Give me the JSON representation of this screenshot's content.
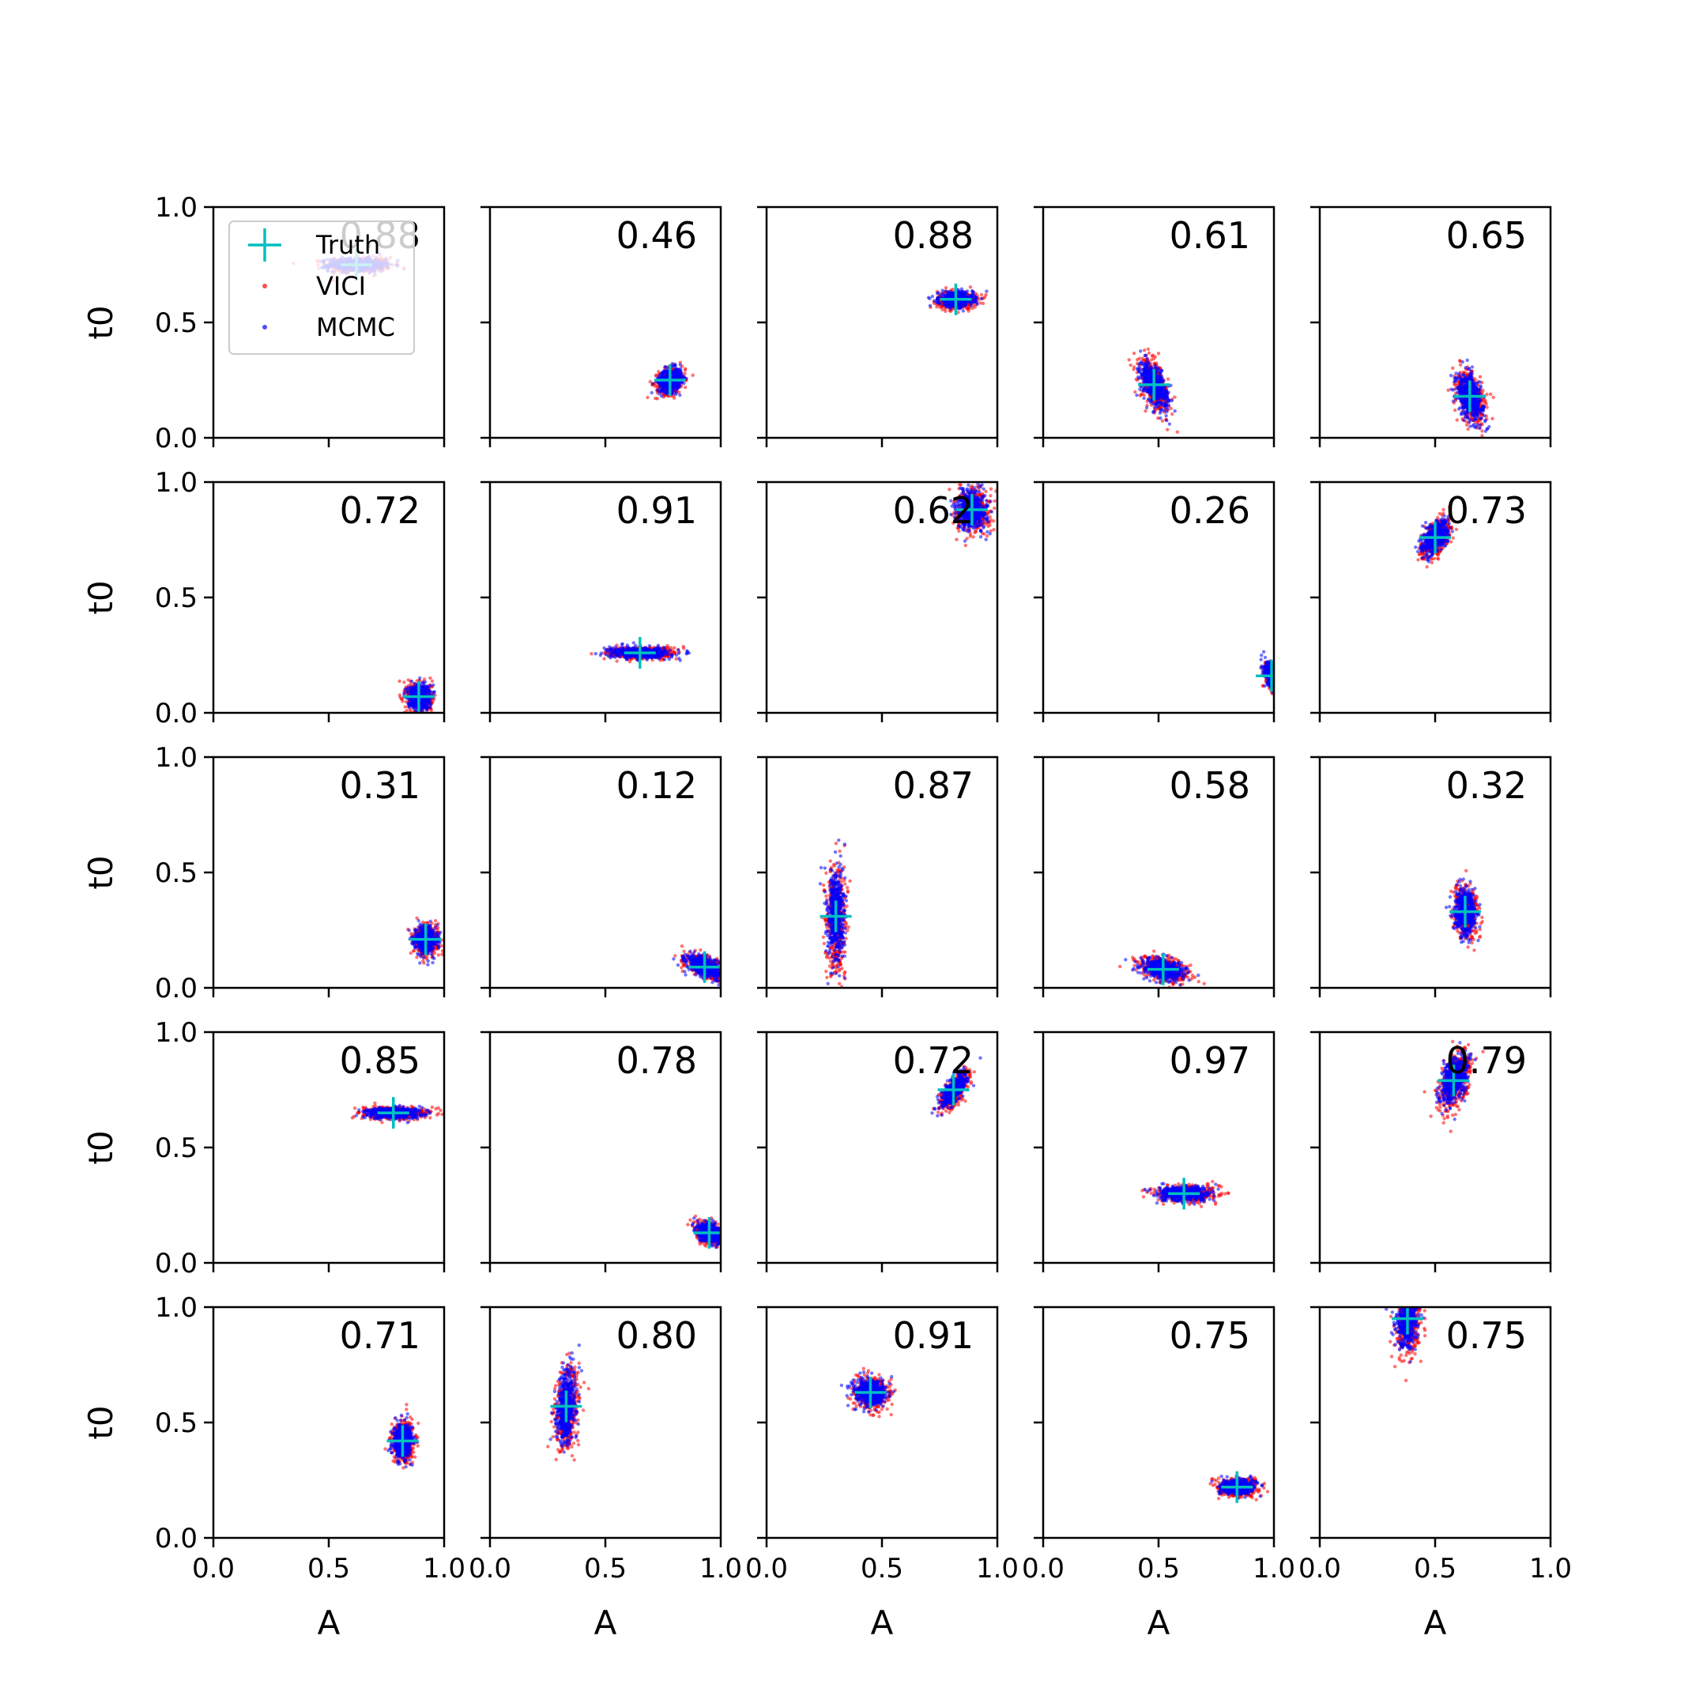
{
  "chart_data": {
    "type": "scatter",
    "layout": {
      "rows": 5,
      "cols": 5
    },
    "xlabel": "A",
    "ylabel": "t0",
    "xlim": [
      0,
      1
    ],
    "ylim": [
      0,
      1
    ],
    "xticks": [
      0.0,
      0.5,
      1.0
    ],
    "yticks": [
      0.0,
      0.5,
      1.0
    ],
    "xtick_labels": [
      "0.0",
      "0.5",
      "1.0"
    ],
    "ytick_labels": [
      "0.0",
      "0.5",
      "1.0"
    ],
    "grid": false,
    "legend": {
      "placement": "upper-left",
      "panel": 0,
      "entries": [
        {
          "label": "Truth",
          "marker": "plus",
          "color": "#00bfbf"
        },
        {
          "label": "VICI",
          "marker": "dot",
          "color": "#ff0000"
        },
        {
          "label": "MCMC",
          "marker": "dot",
          "color": "#0000ff"
        }
      ]
    },
    "series_colors": {
      "truth": "#00bfbf",
      "vici": "#ff0000",
      "mcmc": "#0000ff"
    },
    "panels": [
      {
        "overlap": "0.88",
        "truth": [
          0.62,
          0.75
        ],
        "spread": [
          0.13,
          0.03
        ],
        "tilt": 0.0
      },
      {
        "overlap": "0.46",
        "truth": [
          0.78,
          0.25
        ],
        "spread": [
          0.055,
          0.055
        ],
        "tilt": 0.2
      },
      {
        "overlap": "0.88",
        "truth": [
          0.82,
          0.6
        ],
        "spread": [
          0.08,
          0.035
        ],
        "tilt": 0.0
      },
      {
        "overlap": "0.61",
        "truth": [
          0.48,
          0.23
        ],
        "spread": [
          0.06,
          0.11
        ],
        "tilt": -0.4
      },
      {
        "overlap": "0.65",
        "truth": [
          0.65,
          0.18
        ],
        "spread": [
          0.06,
          0.11
        ],
        "tilt": -0.3
      },
      {
        "overlap": "0.72",
        "truth": [
          0.89,
          0.07
        ],
        "spread": [
          0.05,
          0.06
        ],
        "tilt": 0.0
      },
      {
        "overlap": "0.91",
        "truth": [
          0.65,
          0.26
        ],
        "spread": [
          0.14,
          0.025
        ],
        "tilt": 0.0
      },
      {
        "overlap": "0.62",
        "truth": [
          0.89,
          0.88
        ],
        "spread": [
          0.07,
          0.09
        ],
        "tilt": 0.0
      },
      {
        "overlap": "0.26",
        "truth": [
          0.99,
          0.16
        ],
        "spread": [
          0.03,
          0.06
        ],
        "tilt": -0.3
      },
      {
        "overlap": "0.73",
        "truth": [
          0.5,
          0.76
        ],
        "spread": [
          0.06,
          0.08
        ],
        "tilt": 0.4
      },
      {
        "overlap": "0.31",
        "truth": [
          0.92,
          0.21
        ],
        "spread": [
          0.05,
          0.06
        ],
        "tilt": 0.0
      },
      {
        "overlap": "0.12",
        "truth": [
          0.93,
          0.09
        ],
        "spread": [
          0.09,
          0.05
        ],
        "tilt": -0.4
      },
      {
        "overlap": "0.87",
        "truth": [
          0.3,
          0.31
        ],
        "spread": [
          0.04,
          0.22
        ],
        "tilt": 0.0
      },
      {
        "overlap": "0.58",
        "truth": [
          0.52,
          0.08
        ],
        "spread": [
          0.1,
          0.05
        ],
        "tilt": -0.2
      },
      {
        "overlap": "0.32",
        "truth": [
          0.63,
          0.33
        ],
        "spread": [
          0.05,
          0.1
        ],
        "tilt": 0.0
      },
      {
        "overlap": "0.85",
        "truth": [
          0.78,
          0.65
        ],
        "spread": [
          0.13,
          0.025
        ],
        "tilt": 0.0
      },
      {
        "overlap": "0.78",
        "truth": [
          0.95,
          0.13
        ],
        "spread": [
          0.06,
          0.045
        ],
        "tilt": -0.3
      },
      {
        "overlap": "0.72",
        "truth": [
          0.81,
          0.75
        ],
        "spread": [
          0.06,
          0.09
        ],
        "tilt": 0.6
      },
      {
        "overlap": "0.97",
        "truth": [
          0.61,
          0.3
        ],
        "spread": [
          0.12,
          0.035
        ],
        "tilt": 0.0
      },
      {
        "overlap": "0.79",
        "truth": [
          0.58,
          0.79
        ],
        "spread": [
          0.06,
          0.12
        ],
        "tilt": 0.3
      },
      {
        "overlap": "0.71",
        "truth": [
          0.82,
          0.42
        ],
        "spread": [
          0.045,
          0.08
        ],
        "tilt": 0.0
      },
      {
        "overlap": "0.80",
        "truth": [
          0.33,
          0.57
        ],
        "spread": [
          0.045,
          0.17
        ],
        "tilt": 0.1
      },
      {
        "overlap": "0.91",
        "truth": [
          0.45,
          0.63
        ],
        "spread": [
          0.07,
          0.06
        ],
        "tilt": 0.0
      },
      {
        "overlap": "0.75",
        "truth": [
          0.84,
          0.22
        ],
        "spread": [
          0.08,
          0.035
        ],
        "tilt": 0.0
      },
      {
        "overlap": "0.75",
        "truth": [
          0.38,
          0.95
        ],
        "spread": [
          0.05,
          0.14
        ],
        "tilt": 0.1
      }
    ]
  }
}
